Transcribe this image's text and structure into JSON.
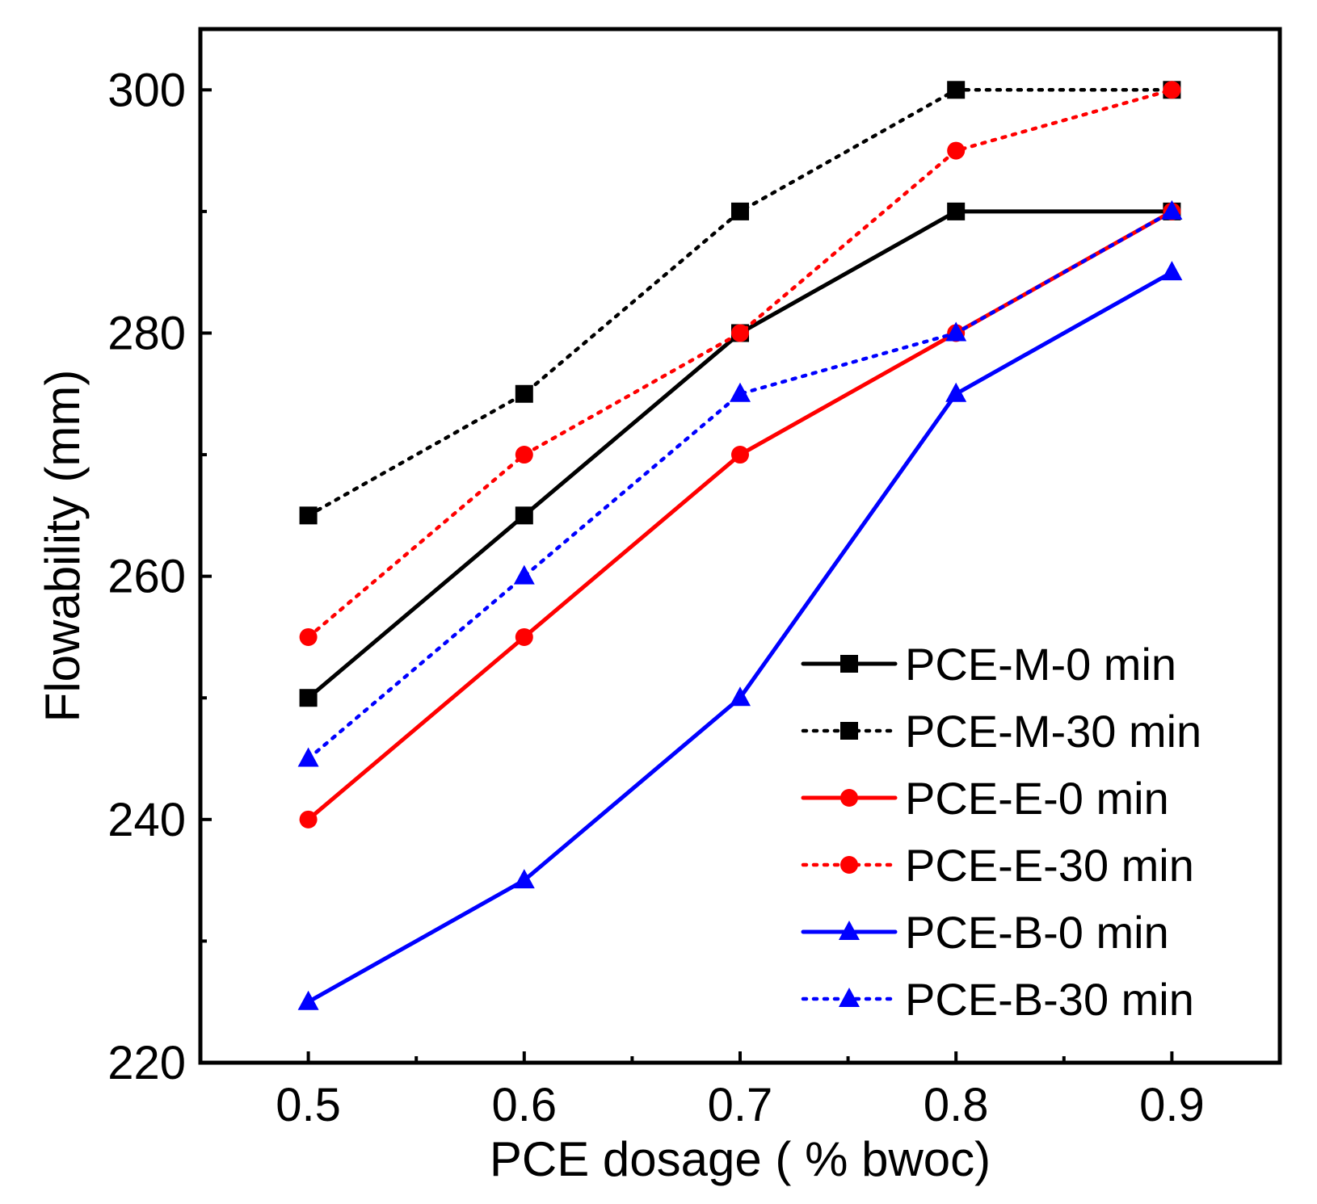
{
  "chart_data": {
    "type": "line",
    "title": "",
    "xlabel": "PCE dosage ( % bwoc)",
    "ylabel": "Flowability (mm)",
    "x": [
      0.5,
      0.6,
      0.7,
      0.8,
      0.9
    ],
    "x_tick_labels": [
      "0.5",
      "0.6",
      "0.7",
      "0.8",
      "0.9"
    ],
    "xlim": [
      0.45,
      0.95
    ],
    "ylim": [
      220,
      305
    ],
    "y_ticks": [
      220,
      240,
      260,
      280,
      300
    ],
    "y_tick_labels": [
      "220",
      "240",
      "260",
      "280",
      "300"
    ],
    "legend_position": "bottom-right",
    "series": [
      {
        "name": "PCE-M-0 min",
        "values": [
          250,
          265,
          280,
          290,
          290
        ],
        "color": "#000000",
        "dash": "solid",
        "marker": "square"
      },
      {
        "name": "PCE-M-30 min",
        "values": [
          265,
          275,
          290,
          300,
          300
        ],
        "color": "#000000",
        "dash": "dotted",
        "marker": "square"
      },
      {
        "name": "PCE-E-0 min",
        "values": [
          240,
          255,
          270,
          280,
          290
        ],
        "color": "#ff0000",
        "dash": "solid",
        "marker": "circle"
      },
      {
        "name": "PCE-E-30 min",
        "values": [
          255,
          270,
          280,
          295,
          300
        ],
        "color": "#ff0000",
        "dash": "dotted",
        "marker": "circle"
      },
      {
        "name": "PCE-B-0 min",
        "values": [
          225,
          235,
          250,
          275,
          285
        ],
        "color": "#0000ff",
        "dash": "solid",
        "marker": "triangle"
      },
      {
        "name": "PCE-B-30 min",
        "values": [
          245,
          260,
          275,
          280,
          290
        ],
        "color": "#0000ff",
        "dash": "dotted",
        "marker": "triangle"
      }
    ]
  }
}
